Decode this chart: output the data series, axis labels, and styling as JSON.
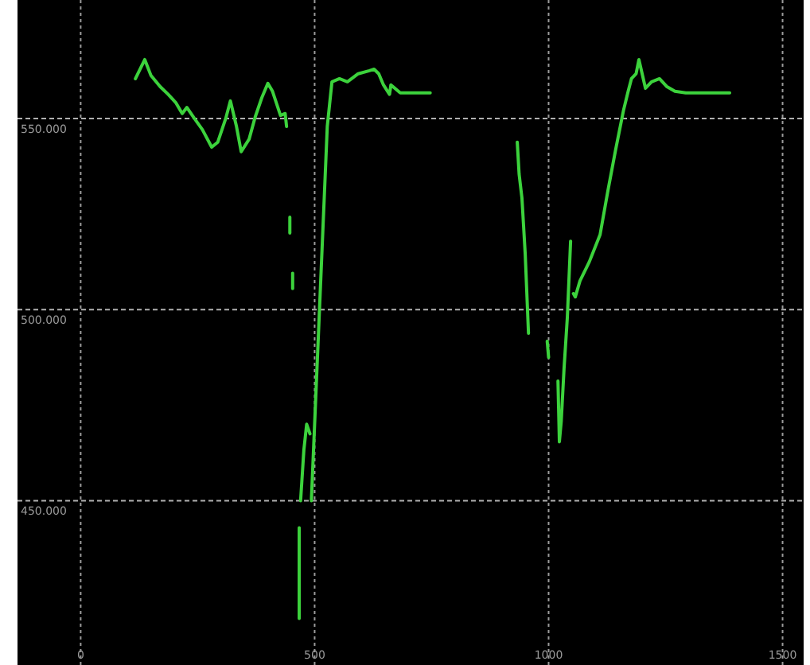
{
  "chart_data": {
    "type": "line",
    "xlim": [
      -135,
      1545
    ],
    "ylim": [
      407000,
      581000
    ],
    "xticks": [
      0,
      500,
      1000,
      1500
    ],
    "yticks": [
      {
        "value": 450000,
        "label": "450.000"
      },
      {
        "value": 500000,
        "label": "500.000"
      },
      {
        "value": 550000,
        "label": "550.000"
      }
    ],
    "grid": true,
    "marker": "none",
    "line_style": "solid",
    "series": [
      {
        "color": "#3cd23c",
        "x": [
          117,
          137,
          150,
          170,
          187,
          203,
          217,
          227,
          243,
          260,
          280,
          293,
          310,
          320,
          333,
          343,
          360,
          373,
          387,
          400,
          410,
          427,
          437,
          440,
          null,
          447,
          447,
          null,
          453,
          453,
          null,
          467,
          467,
          null,
          470,
          477,
          483,
          490,
          null,
          493,
          527,
          537,
          553,
          570,
          593,
          617,
          627,
          637,
          647,
          660,
          663,
          683,
          710,
          747,
          null,
          933,
          937,
          943,
          950,
          957,
          null,
          997,
          1000,
          null,
          1020,
          1023,
          1027,
          1033,
          1040,
          1047,
          null,
          1053,
          1057,
          1067,
          1087,
          1110,
          1127,
          1143,
          1160,
          1170,
          1177,
          1187,
          1193,
          1207,
          1220,
          1237,
          1253,
          1270,
          1293,
          1327,
          1387
        ],
        "values": [
          560400,
          565400,
          561300,
          558300,
          556300,
          554200,
          551300,
          552900,
          550000,
          547100,
          542500,
          543800,
          550000,
          554600,
          547900,
          541300,
          544600,
          550400,
          555400,
          559200,
          557100,
          550800,
          551300,
          547900,
          null,
          524200,
          520000,
          null,
          509500,
          505500,
          null,
          442900,
          419200,
          null,
          450000,
          463300,
          470000,
          467500,
          null,
          450000,
          547900,
          559600,
          560400,
          559600,
          561700,
          562500,
          562900,
          561700,
          558800,
          556300,
          558800,
          556700,
          556700,
          556700,
          null,
          543800,
          535400,
          529200,
          514600,
          493800,
          null,
          491700,
          487500,
          null,
          481300,
          465400,
          470800,
          484600,
          497900,
          517900,
          null,
          504200,
          503300,
          507500,
          512500,
          519600,
          531300,
          541700,
          552100,
          557100,
          560400,
          561700,
          565400,
          557900,
          559600,
          560400,
          558300,
          557100,
          556700,
          556700,
          556700
        ]
      }
    ]
  }
}
